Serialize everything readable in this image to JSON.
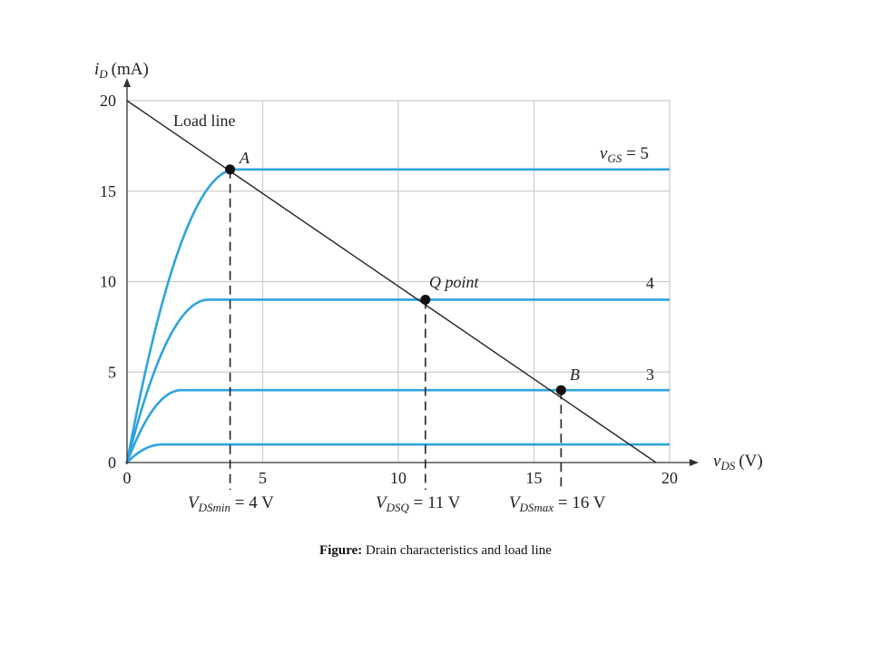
{
  "chart_data": {
    "type": "line",
    "xlabel_main": "v",
    "xlabel_sub": "DS",
    "xlabel_unit": "(V)",
    "ylabel_main": "i",
    "ylabel_sub": "D",
    "ylabel_unit": "(mA)",
    "xlim": [
      0,
      20
    ],
    "ylim": [
      0,
      20
    ],
    "x_ticks": [
      "0",
      "5",
      "10",
      "15",
      "20"
    ],
    "y_ticks": [
      "0",
      "5",
      "10",
      "15",
      "20"
    ],
    "grid": true,
    "series": [
      {
        "vgs_label": "",
        "saturation_id": 1,
        "knee_vds": 1.3
      },
      {
        "vgs_label": "3",
        "saturation_id": 4,
        "knee_vds": 2.0
      },
      {
        "vgs_label": "4",
        "saturation_id": 9,
        "knee_vds": 3.0
      },
      {
        "vgs_label": "5",
        "saturation_id": 16.2,
        "knee_vds": 4.0
      }
    ],
    "vgs_prefix_main": "v",
    "vgs_prefix_sub": "GS",
    "vgs_prefix_eq": " = ",
    "load_line": {
      "label": "Load line",
      "from": [
        0,
        20
      ],
      "to": [
        19.5,
        0
      ]
    },
    "points": [
      {
        "label": "A",
        "vds": 3.8,
        "id": 16.2
      },
      {
        "label": "Q point",
        "vds": 11,
        "id": 9
      },
      {
        "label": "B",
        "vds": 16,
        "id": 4
      }
    ],
    "annotations": [
      {
        "main": "V",
        "sub": "DSmin",
        "rest": " = 4 V"
      },
      {
        "main": "V",
        "sub": "DSQ",
        "rest": " = 11 V"
      },
      {
        "main": "V",
        "sub": "DSmax",
        "rest": " = 16 V"
      }
    ],
    "colors": {
      "curve": "#2fa4dc",
      "load_line": "#222222",
      "grid": "#cccccc",
      "axis": "#333333"
    }
  },
  "caption": {
    "bold": "Figure:",
    "text": " Drain characteristics and load line"
  }
}
